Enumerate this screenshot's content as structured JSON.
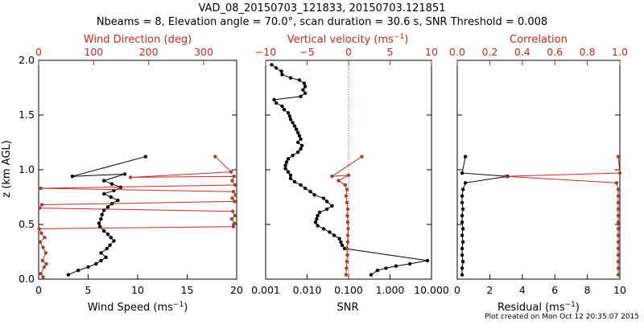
{
  "title": {
    "line1": "VAD_08_20150703_121833, 20150703.121851",
    "line2": "Nbeams = 8, Elevation angle = 70.0°, scan duration = 30.6 s, SNR Threshold = 0.008"
  },
  "footer": "Plot created on Mon Oct 12 20:35:07 2015",
  "colors": {
    "black": "#000000",
    "red": "#cc2a1e",
    "red_points": "#a0442c"
  },
  "panels": {
    "p1": {
      "top_axis_label": "Wind Direction (deg)",
      "bottom_axis_label": "Wind Speed (ms",
      "top_ticks": [
        "0",
        "100",
        "200",
        "300"
      ],
      "bottom_ticks": [
        "0",
        "5",
        "10",
        "15",
        "20"
      ]
    },
    "p2": {
      "top_axis_label": "Vertical velocity (ms",
      "bottom_axis_label": "SNR",
      "top_ticks": [
        "−10",
        "−5",
        "0",
        "5",
        "10"
      ],
      "bottom_ticks": [
        "0.001",
        "0.010",
        "0.100",
        "1.000",
        "10.000"
      ]
    },
    "p3": {
      "top_axis_label": "Correlation",
      "bottom_axis_label": "Residual (ms",
      "top_ticks": [
        "0.0",
        "0.2",
        "0.4",
        "0.6",
        "0.8",
        "1.0"
      ],
      "bottom_ticks": [
        "0",
        "2",
        "4",
        "6",
        "8",
        "10"
      ]
    }
  },
  "y_axis": {
    "label": "z (km AGL)",
    "ticks": [
      "0.0",
      "0.5",
      "1.0",
      "1.5",
      "2.0"
    ]
  },
  "chart_data": [
    {
      "type": "line",
      "panel": "wind",
      "ylim": [
        0,
        2.0
      ],
      "series": [
        {
          "axis": "Wind Speed",
          "color": "#000000",
          "xlim": [
            0,
            20
          ],
          "points": [
            [
              3.0,
              0.04
            ],
            [
              4.0,
              0.08
            ],
            [
              5.0,
              0.11
            ],
            [
              5.8,
              0.14
            ],
            [
              6.3,
              0.17
            ],
            [
              6.8,
              0.2
            ],
            [
              6.3,
              0.24
            ],
            [
              6.9,
              0.28
            ],
            [
              7.2,
              0.31
            ],
            [
              7.6,
              0.35
            ],
            [
              7.3,
              0.38
            ],
            [
              7.0,
              0.41
            ],
            [
              6.6,
              0.44
            ],
            [
              6.2,
              0.48
            ],
            [
              6.1,
              0.51
            ],
            [
              6.3,
              0.55
            ],
            [
              6.4,
              0.59
            ],
            [
              6.6,
              0.63
            ],
            [
              7.0,
              0.66
            ],
            [
              7.4,
              0.69
            ],
            [
              8.0,
              0.72
            ],
            [
              7.3,
              0.75
            ],
            [
              6.6,
              0.78
            ],
            [
              7.6,
              0.81
            ],
            [
              8.3,
              0.84
            ],
            [
              7.4,
              0.87
            ],
            [
              6.6,
              0.9
            ],
            [
              8.7,
              0.96
            ],
            [
              3.4,
              0.94
            ],
            [
              10.8,
              1.12
            ]
          ]
        },
        {
          "axis": "Wind Direction",
          "color": "#cc2a1e",
          "xlim": [
            0,
            360
          ],
          "points": [
            [
              8,
              0.02
            ],
            [
              4,
              0.05
            ],
            [
              10,
              0.11
            ],
            [
              14,
              0.14
            ],
            [
              7,
              0.17
            ],
            [
              13,
              0.24
            ],
            [
              8,
              0.29
            ],
            [
              3,
              0.34
            ],
            [
              11,
              0.38
            ],
            [
              5,
              0.42
            ],
            [
              1,
              0.46
            ],
            [
              354,
              0.48
            ],
            [
              356,
              0.51
            ],
            [
              351,
              0.55
            ],
            [
              357,
              0.58
            ],
            [
              353,
              0.62
            ],
            [
              2,
              0.65
            ],
            [
              6,
              0.68
            ],
            [
              356,
              0.71
            ],
            [
              352,
              0.74
            ],
            [
              358,
              0.77
            ],
            [
              354,
              0.8
            ],
            [
              4,
              0.83
            ],
            [
              357,
              0.86
            ],
            [
              352,
              0.9
            ],
            [
              355,
              0.94
            ],
            [
              167,
              0.93
            ],
            [
              350,
              0.98
            ],
            [
              321,
              1.12
            ]
          ]
        }
      ]
    },
    {
      "type": "line",
      "panel": "snr",
      "ylim": [
        0,
        2.0
      ],
      "series": [
        {
          "axis": "SNR",
          "color": "#000000",
          "xscale": "log",
          "xlim": [
            0.001,
            10.0
          ],
          "points": [
            [
              0.35,
              0.04
            ],
            [
              0.5,
              0.08
            ],
            [
              0.8,
              0.1
            ],
            [
              1.4,
              0.12
            ],
            [
              3.0,
              0.14
            ],
            [
              8.0,
              0.17
            ],
            [
              0.08,
              0.28
            ],
            [
              0.07,
              0.31
            ],
            [
              0.065,
              0.34
            ],
            [
              0.06,
              0.37
            ],
            [
              0.045,
              0.4
            ],
            [
              0.035,
              0.43
            ],
            [
              0.025,
              0.46
            ],
            [
              0.018,
              0.49
            ],
            [
              0.016,
              0.52
            ],
            [
              0.017,
              0.55
            ],
            [
              0.018,
              0.58
            ],
            [
              0.02,
              0.61
            ],
            [
              0.03,
              0.64
            ],
            [
              0.04,
              0.67
            ],
            [
              0.03,
              0.71
            ],
            [
              0.025,
              0.74
            ],
            [
              0.015,
              0.77
            ],
            [
              0.012,
              0.8
            ],
            [
              0.009,
              0.83
            ],
            [
              0.007,
              0.86
            ],
            [
              0.005,
              0.89
            ],
            [
              0.004,
              0.92
            ],
            [
              0.004,
              0.95
            ],
            [
              0.0035,
              0.98
            ],
            [
              0.003,
              1.01
            ],
            [
              0.003,
              1.04
            ],
            [
              0.0032,
              1.07
            ],
            [
              0.0035,
              1.1
            ],
            [
              0.0045,
              1.13
            ],
            [
              0.006,
              1.16
            ],
            [
              0.007,
              1.19
            ],
            [
              0.0075,
              1.22
            ],
            [
              0.006,
              1.25
            ],
            [
              0.007,
              1.28
            ],
            [
              0.0065,
              1.31
            ],
            [
              0.006,
              1.34
            ],
            [
              0.0055,
              1.37
            ],
            [
              0.005,
              1.4
            ],
            [
              0.0045,
              1.43
            ],
            [
              0.004,
              1.46
            ],
            [
              0.0038,
              1.49
            ],
            [
              0.0035,
              1.52
            ],
            [
              0.0028,
              1.55
            ],
            [
              0.0025,
              1.58
            ],
            [
              0.0018,
              1.61
            ],
            [
              0.0016,
              1.64
            ],
            [
              0.007,
              1.67
            ],
            [
              0.009,
              1.7
            ],
            [
              0.008,
              1.73
            ],
            [
              0.009,
              1.76
            ],
            [
              0.0085,
              1.79
            ],
            [
              0.0065,
              1.82
            ],
            [
              0.004,
              1.84
            ],
            [
              0.0025,
              1.87
            ],
            [
              0.0024,
              1.9
            ],
            [
              0.0018,
              1.93
            ],
            [
              0.0014,
              1.96
            ]
          ]
        },
        {
          "axis": "Vertical velocity",
          "color": "#cc2a1e",
          "xlim": [
            -10,
            10
          ],
          "points": [
            [
              -0.3,
              0.04
            ],
            [
              -0.25,
              0.1
            ],
            [
              -0.2,
              0.16
            ],
            [
              -0.15,
              0.22
            ],
            [
              -0.2,
              0.28
            ],
            [
              -0.1,
              0.34
            ],
            [
              -0.1,
              0.4
            ],
            [
              -0.05,
              0.46
            ],
            [
              -0.1,
              0.52
            ],
            [
              -0.15,
              0.58
            ],
            [
              -0.1,
              0.64
            ],
            [
              -0.2,
              0.7
            ],
            [
              -0.3,
              0.76
            ],
            [
              -0.2,
              0.82
            ],
            [
              -0.4,
              0.86
            ],
            [
              -1.2,
              0.9
            ],
            [
              0.0,
              0.95
            ],
            [
              -2.0,
              0.94
            ],
            [
              1.6,
              1.12
            ]
          ]
        }
      ]
    },
    {
      "type": "line",
      "panel": "residual",
      "ylim": [
        0,
        2.0
      ],
      "series": [
        {
          "axis": "Residual",
          "color": "#000000",
          "xlim": [
            0,
            10
          ],
          "points": [
            [
              0.3,
              0.04
            ],
            [
              0.3,
              0.1
            ],
            [
              0.35,
              0.16
            ],
            [
              0.3,
              0.22
            ],
            [
              0.3,
              0.28
            ],
            [
              0.35,
              0.34
            ],
            [
              0.3,
              0.4
            ],
            [
              0.35,
              0.46
            ],
            [
              0.3,
              0.52
            ],
            [
              0.3,
              0.58
            ],
            [
              0.35,
              0.64
            ],
            [
              0.3,
              0.7
            ],
            [
              0.3,
              0.76
            ],
            [
              0.35,
              0.82
            ],
            [
              0.5,
              0.88
            ],
            [
              3.1,
              0.94
            ],
            [
              0.3,
              0.97
            ],
            [
              0.5,
              1.12
            ]
          ]
        },
        {
          "axis": "Correlation",
          "color": "#cc2a1e",
          "xlim": [
            0,
            1.0
          ],
          "points": [
            [
              0.99,
              0.04
            ],
            [
              0.99,
              0.1
            ],
            [
              0.99,
              0.16
            ],
            [
              0.99,
              0.22
            ],
            [
              0.99,
              0.28
            ],
            [
              0.99,
              0.34
            ],
            [
              0.99,
              0.4
            ],
            [
              0.99,
              0.46
            ],
            [
              0.99,
              0.52
            ],
            [
              0.99,
              0.58
            ],
            [
              0.99,
              0.64
            ],
            [
              0.99,
              0.7
            ],
            [
              0.99,
              0.76
            ],
            [
              0.99,
              0.82
            ],
            [
              0.98,
              0.88
            ],
            [
              0.3,
              0.94
            ],
            [
              1.0,
              0.97
            ],
            [
              0.99,
              1.12
            ]
          ]
        }
      ]
    }
  ]
}
